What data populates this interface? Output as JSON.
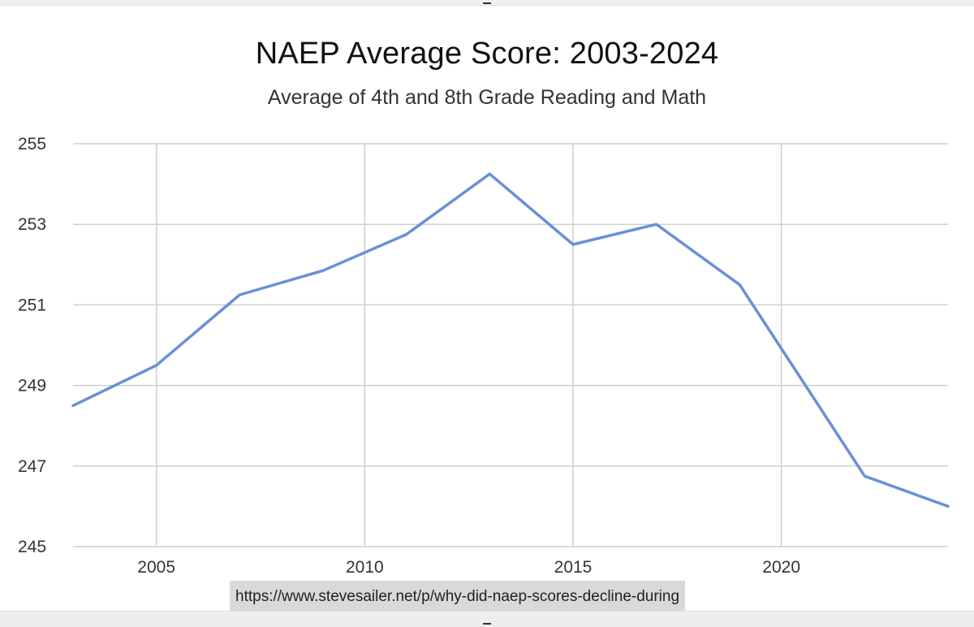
{
  "chart_data": {
    "type": "line",
    "title": "NAEP Average Score: 2003-2024",
    "subtitle": "Average of 4th and 8th Grade Reading and Math",
    "xlabel": "",
    "ylabel": "",
    "xlim": [
      2003,
      2024
    ],
    "ylim": [
      245,
      255
    ],
    "x_ticks": [
      2005,
      2010,
      2015,
      2020
    ],
    "y_ticks": [
      245,
      247,
      249,
      251,
      253,
      255
    ],
    "grid": true,
    "legend": "none",
    "series": [
      {
        "color": "#6b8fd8",
        "x": [
          2003,
          2005,
          2007,
          2009,
          2011,
          2013,
          2015,
          2017,
          2019,
          2022,
          2024
        ],
        "y": [
          248.5,
          249.5,
          251.25,
          251.85,
          252.75,
          254.25,
          252.5,
          253.0,
          251.5,
          246.75,
          246.0
        ]
      }
    ]
  },
  "footer": {
    "url": "https://www.stevesailer.net/p/why-did-naep-scores-decline-during"
  }
}
